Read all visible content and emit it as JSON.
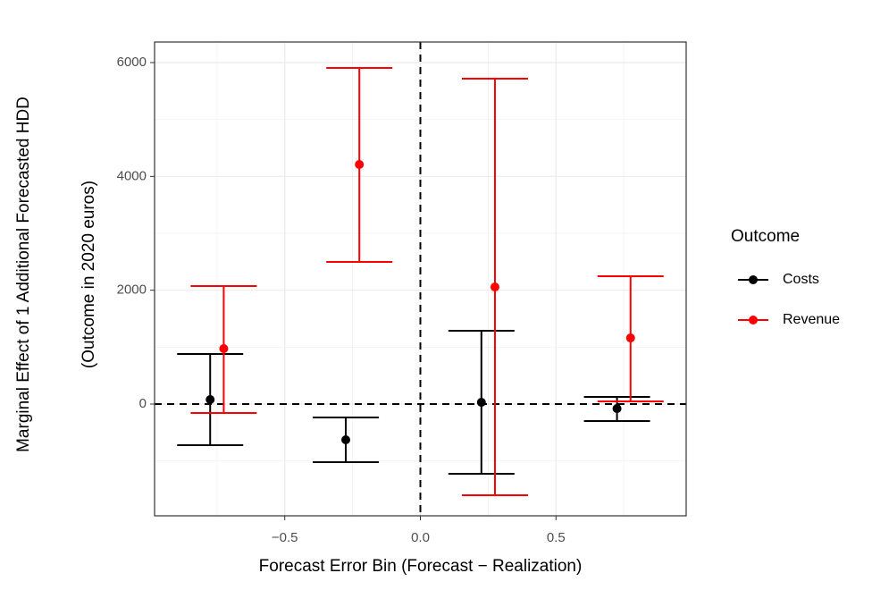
{
  "chart_data": {
    "type": "errorbar",
    "xlabel": "Forecast Error Bin (Forecast − Realization)",
    "ylabel": [
      "Marginal Effect of 1 Additional Forecasted HDD",
      "(Outcome in 2020 euros)"
    ],
    "legend_title": "Outcome",
    "xlim": [
      -0.98,
      0.98
    ],
    "ylim": [
      -1963,
      6361
    ],
    "xticks": [
      {
        "value": -0.5,
        "label": "−0.5"
      },
      {
        "value": 0,
        "label": "0.0"
      },
      {
        "value": 0.5,
        "label": "0.5"
      }
    ],
    "yticks": [
      0,
      2000,
      4000,
      6000
    ],
    "hline": 0,
    "vline": 0,
    "grid": true,
    "series": [
      {
        "name": "Costs",
        "color": "#000000",
        "x": [
          -0.775,
          -0.275,
          0.225,
          0.725
        ],
        "values": [
          79,
          -628,
          31,
          -79
        ],
        "lower": [
          -722,
          -1021,
          -1225,
          -298
        ],
        "upper": [
          880,
          -236,
          1288,
          126
        ]
      },
      {
        "name": "Revenue",
        "color": "#ff0000",
        "x": [
          -0.725,
          -0.225,
          0.275,
          0.775
        ],
        "values": [
          974,
          4209,
          2057,
          1162
        ],
        "lower": [
          -157,
          2497,
          -1602,
          47
        ],
        "upper": [
          2073,
          5906,
          5717,
          2246
        ]
      }
    ]
  }
}
